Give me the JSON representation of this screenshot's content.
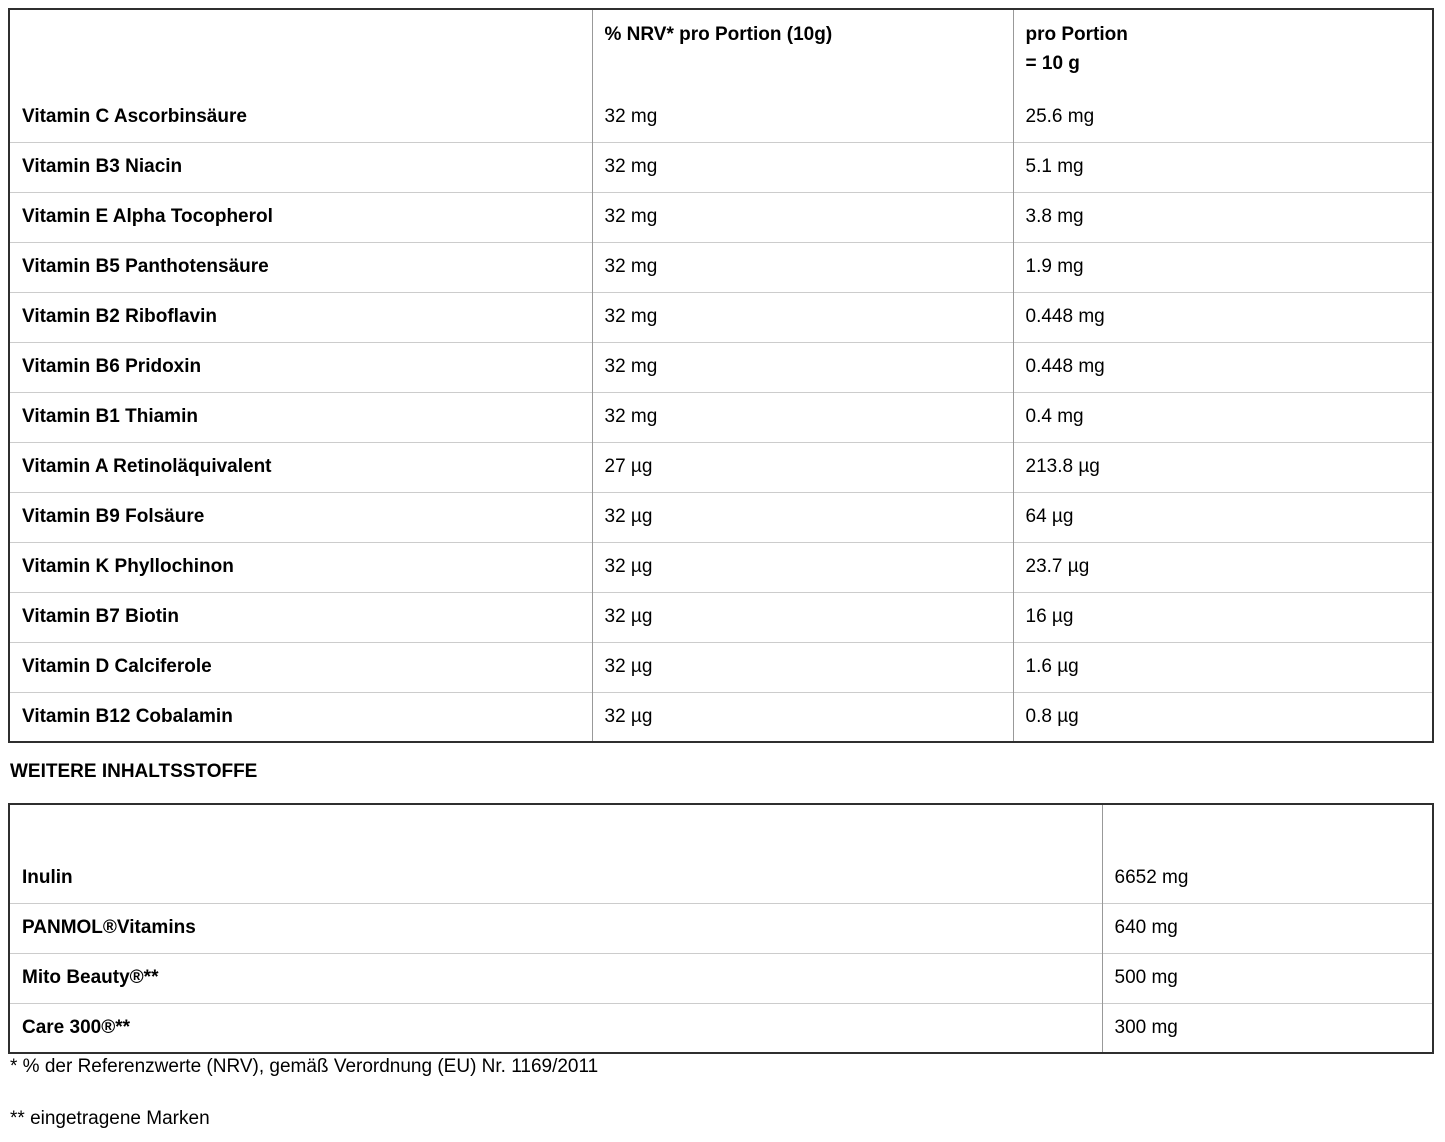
{
  "vitamin_table": {
    "header": {
      "empty": "",
      "nrv": "% NRV* pro Portion (10g)",
      "portion_line1": "pro Portion",
      "portion_line2": "= 10 g"
    },
    "rows": [
      {
        "name": "Vitamin C Ascorbinsäure",
        "nrv": "32 mg",
        "amount": "25.6 mg"
      },
      {
        "name": "Vitamin B3 Niacin",
        "nrv": "32 mg",
        "amount": "5.1 mg"
      },
      {
        "name": "Vitamin E Alpha Tocopherol",
        "nrv": "32 mg",
        "amount": "3.8 mg"
      },
      {
        "name": "Vitamin B5 Panthotensäure",
        "nrv": "32 mg",
        "amount": "1.9 mg"
      },
      {
        "name": "Vitamin B2 Riboflavin",
        "nrv": "32 mg",
        "amount": "0.448 mg"
      },
      {
        "name": "Vitamin B6 Pridoxin",
        "nrv": "32 mg",
        "amount": "0.448 mg"
      },
      {
        "name": "Vitamin B1 Thiamin",
        "nrv": "32 mg",
        "amount": "0.4 mg"
      },
      {
        "name": "Vitamin A Retinoläquivalent",
        "nrv": "27 µg",
        "amount": "213.8 µg"
      },
      {
        "name": "Vitamin B9 Folsäure",
        "nrv": "32 µg",
        "amount": "64 µg"
      },
      {
        "name": "Vitamin K Phyllochinon",
        "nrv": "32 µg",
        "amount": "23.7 µg"
      },
      {
        "name": "Vitamin B7 Biotin",
        "nrv": "32 µg",
        "amount": "16 µg"
      },
      {
        "name": "Vitamin D Calciferole",
        "nrv": "32 µg",
        "amount": "1.6 µg"
      },
      {
        "name": "Vitamin B12 Cobalamin",
        "nrv": "32 µg",
        "amount": "0.8 µg"
      }
    ]
  },
  "section_heading": "WEITERE INHALTSSTOFFE",
  "ingredients_table": {
    "header": {
      "empty_name": "",
      "empty_amount": ""
    },
    "rows": [
      {
        "name": "Inulin",
        "amount": "6652 mg"
      },
      {
        "name": "PANMOL®Vitamins",
        "amount": "640 mg"
      },
      {
        "name": "Mito Beauty®**",
        "amount": "500 mg"
      },
      {
        "name": "Care 300®**",
        "amount": "300 mg"
      }
    ]
  },
  "footnotes": {
    "nrv_reference": "* % der Referenzwerte (NRV), gemäß Verordnung (EU) Nr. 1169/2011",
    "trademarks": "** eingetragene Marken"
  },
  "colors": {
    "outer_border": "#2f2f2f",
    "inner_vertical_border": "#999999",
    "inner_horizontal_border": "#cccccc",
    "text": "#000000",
    "background": "#ffffff"
  }
}
